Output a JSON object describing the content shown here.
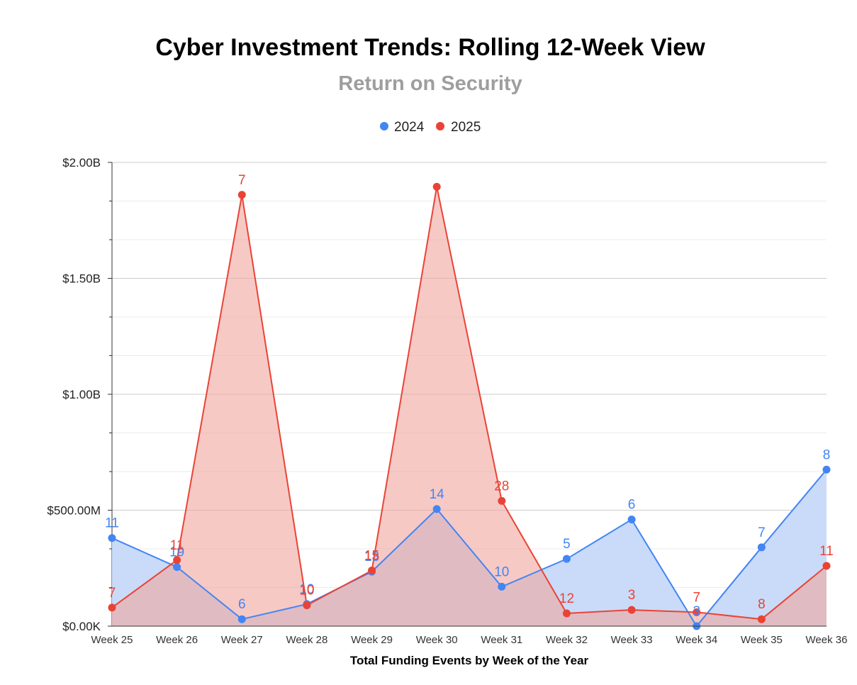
{
  "chart_data": {
    "type": "area",
    "title": "Cyber Investment Trends: Rolling 12-Week View",
    "subtitle": "Return on Security",
    "xlabel": "Total Funding Events by Week of the Year",
    "ylabel": "",
    "categories": [
      "Week 25",
      "Week 26",
      "Week 27",
      "Week 28",
      "Week 29",
      "Week 30",
      "Week 31",
      "Week 32",
      "Week 33",
      "Week 34",
      "Week 35",
      "Week 36"
    ],
    "ylim": [
      0,
      2000000000
    ],
    "yticks": [
      0,
      500000000,
      1000000000,
      1500000000,
      2000000000
    ],
    "ytick_labels": [
      "$0.00K",
      "$500.00M",
      "$1.00B",
      "$1.50B",
      "$2.00B"
    ],
    "grid": true,
    "legend_position": "top",
    "series": [
      {
        "name": "2024",
        "color": "#4285f4",
        "fill": "#c6d9f8",
        "values": [
          380000000,
          255000000,
          30000000,
          95000000,
          235000000,
          505000000,
          170000000,
          290000000,
          460000000,
          0,
          340000000,
          675000000
        ],
        "labels": [
          "11",
          "19",
          "6",
          "10",
          "13",
          "14",
          "10",
          "5",
          "6",
          "3",
          "7",
          "8"
        ]
      },
      {
        "name": "2025",
        "color": "#ea4335",
        "fill": "#f0a8a1",
        "values": [
          80000000,
          285000000,
          1860000000,
          90000000,
          240000000,
          1895000000,
          540000000,
          55000000,
          70000000,
          60000000,
          30000000,
          260000000
        ],
        "labels": [
          "7",
          "11",
          "7",
          "10",
          "15",
          "",
          "28",
          "12",
          "3",
          "7",
          "8",
          "11"
        ]
      }
    ]
  }
}
